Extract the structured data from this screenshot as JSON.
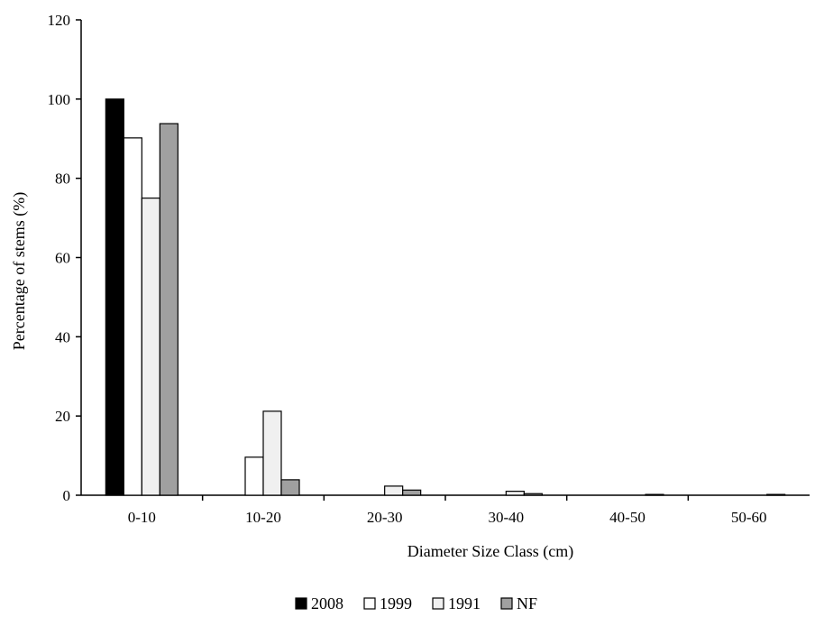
{
  "chart_data": {
    "type": "bar",
    "title": "",
    "xlabel": "Diameter Size Class (cm)",
    "ylabel": "Percentage of stems (%)",
    "ylim": [
      0,
      120
    ],
    "yticks": [
      0,
      20,
      40,
      60,
      80,
      100,
      120
    ],
    "categories": [
      "0-10",
      "10-20",
      "20-30",
      "30-40",
      "40-50",
      "50-60"
    ],
    "series": [
      {
        "name": "2008",
        "color": "#000000",
        "values": [
          100,
          0,
          0,
          0,
          0,
          0
        ]
      },
      {
        "name": "1999",
        "color": "#ffffff",
        "values": [
          90.2,
          9.6,
          0,
          0,
          0,
          0
        ]
      },
      {
        "name": "1991",
        "color": "#f0f0f0",
        "values": [
          75,
          21.2,
          2.3,
          1,
          0,
          0
        ]
      },
      {
        "name": "NF",
        "color": "#a0a0a0",
        "values": [
          93.8,
          3.9,
          1.3,
          0.4,
          0.2,
          0.2
        ]
      }
    ],
    "grid": false,
    "legend_position": "bottom"
  }
}
